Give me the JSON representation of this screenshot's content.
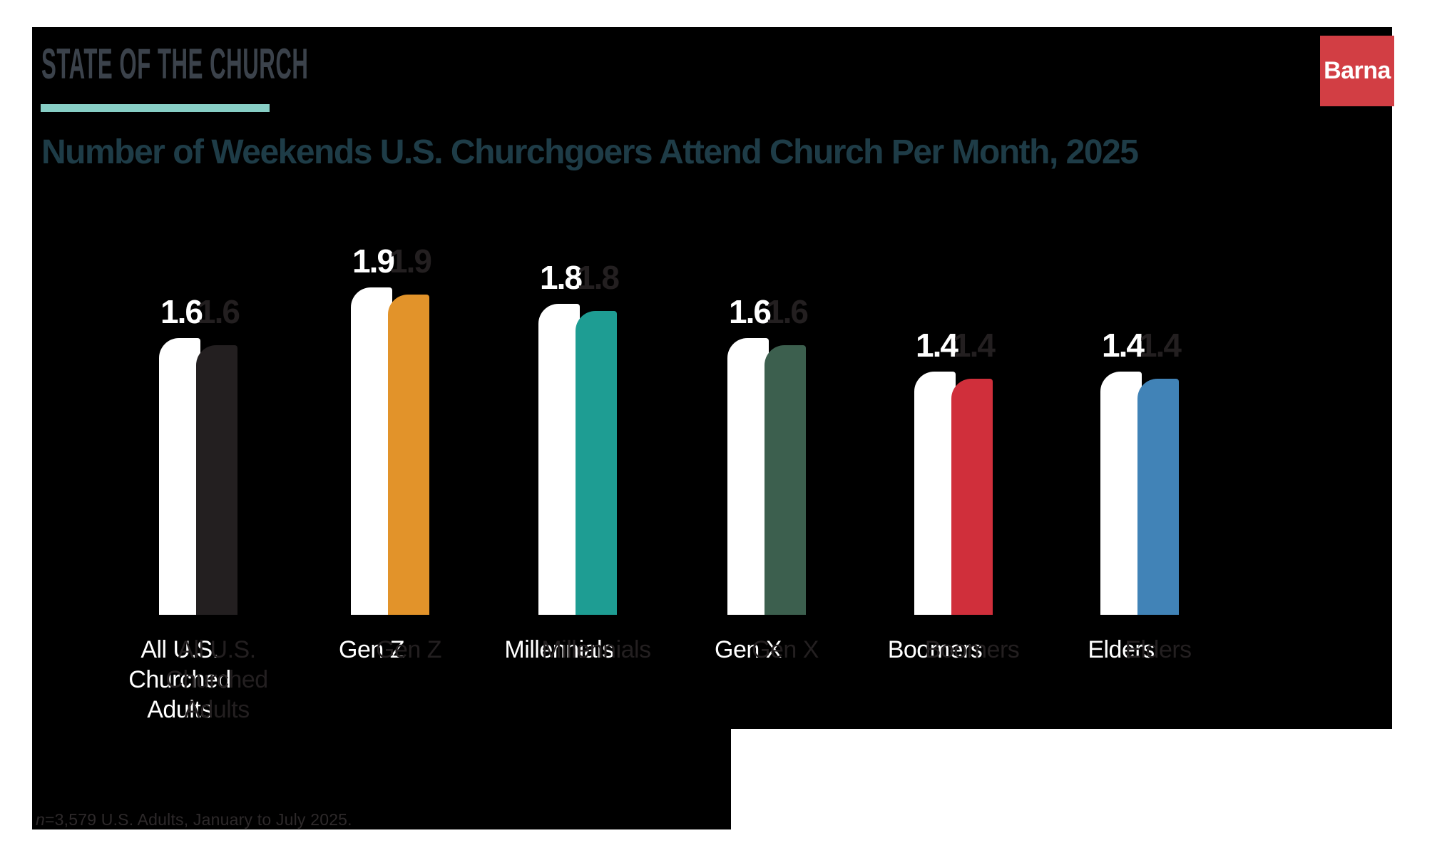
{
  "header": {
    "brand": "STATE OF THE CHURCH",
    "logo_text": "Barna"
  },
  "title": {
    "text": "Number of Weekends U.S. Churchgoers Attend Church Per Month, 2025"
  },
  "footnote": {
    "prefix": "n",
    "rest": "=3,579 U.S. Adults, January to July 2025."
  },
  "theme": {
    "page_background": "#ffffff",
    "panel_background": "#000000",
    "brand_text_color": "#3B424B",
    "brand_underline_color": "#87CEC5",
    "title_color": "#1E3C47",
    "logo_background": "#D23E44",
    "logo_text_color": "#ffffff",
    "ghost_duplicate_color": "#ffffff",
    "shadow_text_color": "#231F20",
    "footnote_color": "#2D292A"
  },
  "chart_data": {
    "type": "bar",
    "title": "Number of Weekends U.S. Churchgoers Attend Church Per Month, 2025",
    "categories": [
      "All U.S. Churched Adults",
      "Gen Z",
      "Millennials",
      "Gen X",
      "Boomers",
      "Elders"
    ],
    "values": [
      1.6,
      1.9,
      1.8,
      1.6,
      1.4,
      1.4
    ],
    "value_labels": [
      "1.6",
      "1.9",
      "1.8",
      "1.6",
      "1.4",
      "1.4"
    ],
    "bar_colors": [
      "#231F20",
      "#E2932A",
      "#1E9D93",
      "#3C5F4E",
      "#D02F3B",
      "#4183B7"
    ],
    "xlabel": "",
    "ylabel": "",
    "ylim": [
      0,
      2
    ],
    "axes_visible": false,
    "grid": false,
    "legend": "none",
    "value_labels_position": "above bars"
  }
}
